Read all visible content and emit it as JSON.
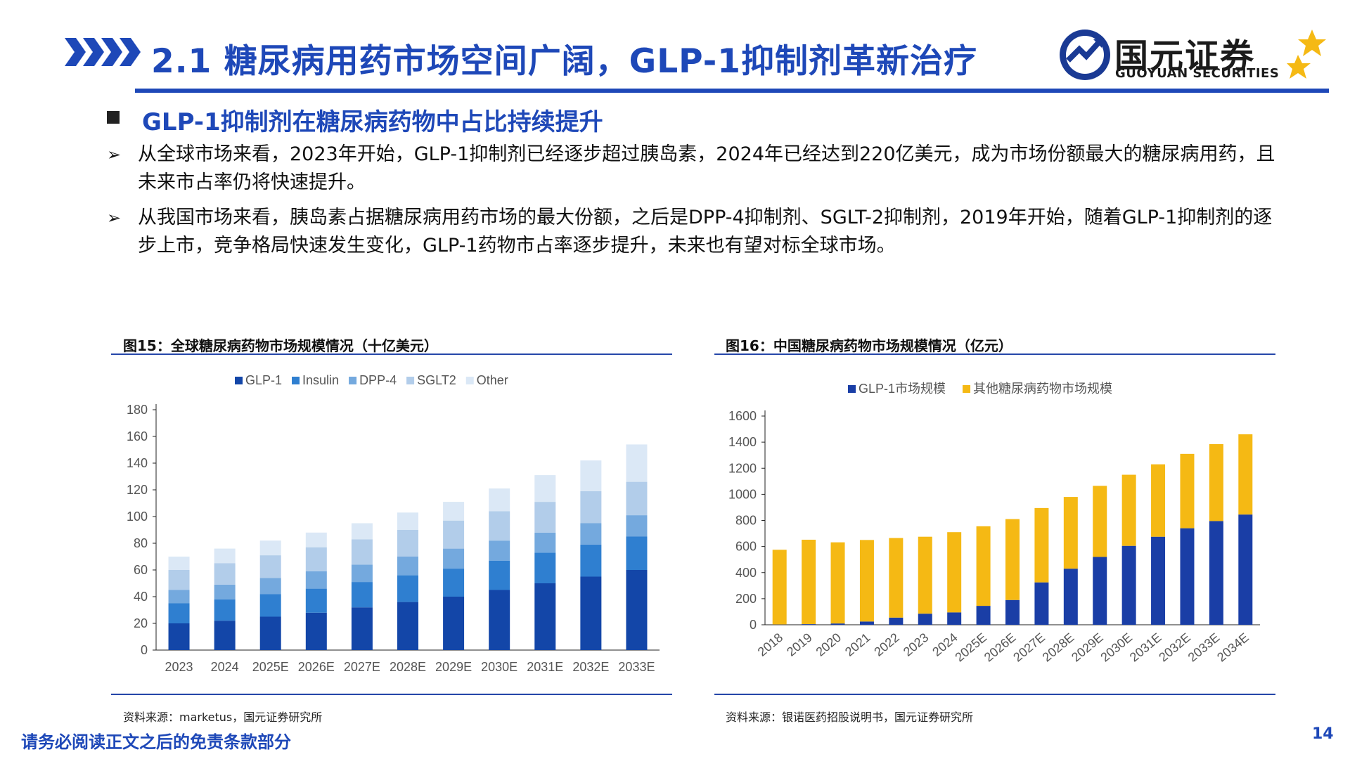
{
  "header": {
    "title": "2.1 糖尿病用药市场空间广阔，GLP-1抑制剂革新治疗",
    "logo_cn": "国元证券",
    "logo_en": "GUOYUAN SECURITIES"
  },
  "section": {
    "subtitle": "GLP-1抑制剂在糖尿病药物中占比持续提升",
    "bullets": [
      "从全球市场来看，2023年开始，GLP-1抑制剂已经逐步超过胰岛素，2024年已经达到220亿美元，成为市场份额最大的糖尿病用药，且未来市占率仍将快速提升。",
      "从我国市场来看，胰岛素占据糖尿病用药市场的最大份额，之后是DPP-4抑制剂、SGLT-2抑制剂，2019年开始，随着GLP-1抑制剂的逐步上市，竞争格局快速发生变化，GLP-1药物市占率逐步提升，未来也有望对标全球市场。"
    ],
    "bullet_marker": "➢"
  },
  "figures": {
    "fig15_title": "图15：全球糖尿病药物市场规模情况（十亿美元）",
    "fig15_source": "资料来源：marketus，国元证券研究所",
    "fig16_title": "图16：中国糖尿病药物市场规模情况（亿元）",
    "fig16_source": "资料来源：银诺医药招股说明书，国元证券研究所"
  },
  "footer": {
    "disclaimer": "请务必阅读正文之后的免责条款部分",
    "page": "14"
  },
  "colors": {
    "brand_blue": "#1e48b8",
    "glp1": "#1346a8",
    "insulin": "#2f7fd0",
    "dpp4": "#74a9de",
    "sglt2": "#b2cdea",
    "other": "#dbe8f6",
    "china_glp1": "#1a3ea6",
    "china_other": "#f5b914"
  },
  "chart_data": [
    {
      "type": "bar",
      "stacked": true,
      "categories": [
        "2023",
        "2024",
        "2025E",
        "2026E",
        "2027E",
        "2028E",
        "2029E",
        "2030E",
        "2031E",
        "2032E",
        "2033E"
      ],
      "series": [
        {
          "name": "GLP-1",
          "values": [
            20,
            22,
            25,
            28,
            32,
            36,
            40,
            45,
            50,
            55,
            60
          ]
        },
        {
          "name": "Insulin",
          "values": [
            15,
            16,
            17,
            18,
            19,
            20,
            21,
            22,
            23,
            24,
            25
          ]
        },
        {
          "name": "DPP-4",
          "values": [
            10,
            11,
            12,
            13,
            13,
            14,
            15,
            15,
            15,
            16,
            16
          ]
        },
        {
          "name": "SGLT2",
          "values": [
            15,
            16,
            17,
            18,
            19,
            20,
            21,
            22,
            23,
            24,
            25
          ]
        },
        {
          "name": "Other",
          "values": [
            10,
            11,
            11,
            11,
            12,
            13,
            14,
            17,
            20,
            23,
            28
          ]
        }
      ],
      "ylim": [
        0,
        180
      ],
      "yticks": [
        0,
        20,
        40,
        60,
        80,
        100,
        120,
        140,
        160,
        180
      ],
      "legend": "top",
      "grid": false
    },
    {
      "type": "bar",
      "stacked": true,
      "categories": [
        "2018",
        "2019",
        "2020",
        "2021",
        "2022",
        "2023",
        "2024",
        "2025E",
        "2026E",
        "2027E",
        "2028E",
        "2029E",
        "2030E",
        "2031E",
        "2032E",
        "2033E",
        "2034E"
      ],
      "series": [
        {
          "name": "GLP-1市场规模",
          "values": [
            2,
            5,
            10,
            25,
            55,
            85,
            95,
            145,
            190,
            325,
            430,
            520,
            605,
            675,
            740,
            795,
            845
          ]
        },
        {
          "name": "其他糖尿病药物市场规模",
          "values": [
            573,
            647,
            622,
            625,
            610,
            590,
            615,
            610,
            620,
            570,
            550,
            545,
            545,
            555,
            570,
            590,
            615
          ]
        }
      ],
      "ylim": [
        0,
        1600
      ],
      "yticks": [
        0,
        200,
        400,
        600,
        800,
        1000,
        1200,
        1400,
        1600
      ],
      "legend": "top",
      "grid": false
    }
  ]
}
